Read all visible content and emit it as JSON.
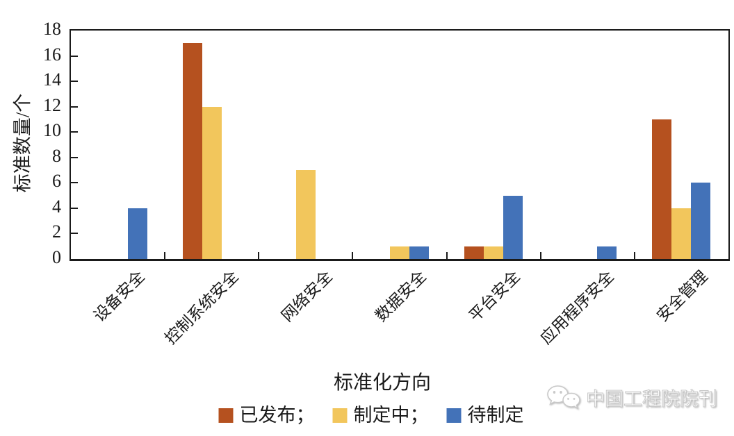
{
  "chart_data": {
    "type": "bar",
    "title": "",
    "xlabel": "标准化方向",
    "ylabel": "标准数量/个",
    "categories": [
      "设备安全",
      "控制系统安全",
      "网络安全",
      "数据安全",
      "平台安全",
      "应用程序安全",
      "安全管理"
    ],
    "series": [
      {
        "name": "已发布",
        "color": "#b5511f",
        "values": [
          0,
          17,
          0,
          0,
          1,
          0,
          11
        ]
      },
      {
        "name": "制定中",
        "color": "#f2c65c",
        "values": [
          0,
          12,
          7,
          1,
          1,
          0,
          4
        ]
      },
      {
        "name": "待制定",
        "color": "#4372b8",
        "values": [
          4,
          0,
          0,
          1,
          5,
          1,
          6
        ]
      }
    ],
    "ylim": [
      0,
      18
    ],
    "y_ticks": [
      0,
      2,
      4,
      6,
      8,
      10,
      12,
      14,
      16,
      18
    ],
    "grid": false,
    "legend_position": "bottom",
    "bar_orientation": "vertical"
  },
  "legend": {
    "items": [
      {
        "label": "已发布；",
        "color": "#b5511f"
      },
      {
        "label": "制定中；",
        "color": "#f2c65c"
      },
      {
        "label": "待制定",
        "color": "#4372b8"
      }
    ]
  },
  "watermark": {
    "text": "中国工程院院刊",
    "icon": "wechat-icon"
  },
  "colors": {
    "axis": "#1a1a1a",
    "background": "#ffffff"
  }
}
